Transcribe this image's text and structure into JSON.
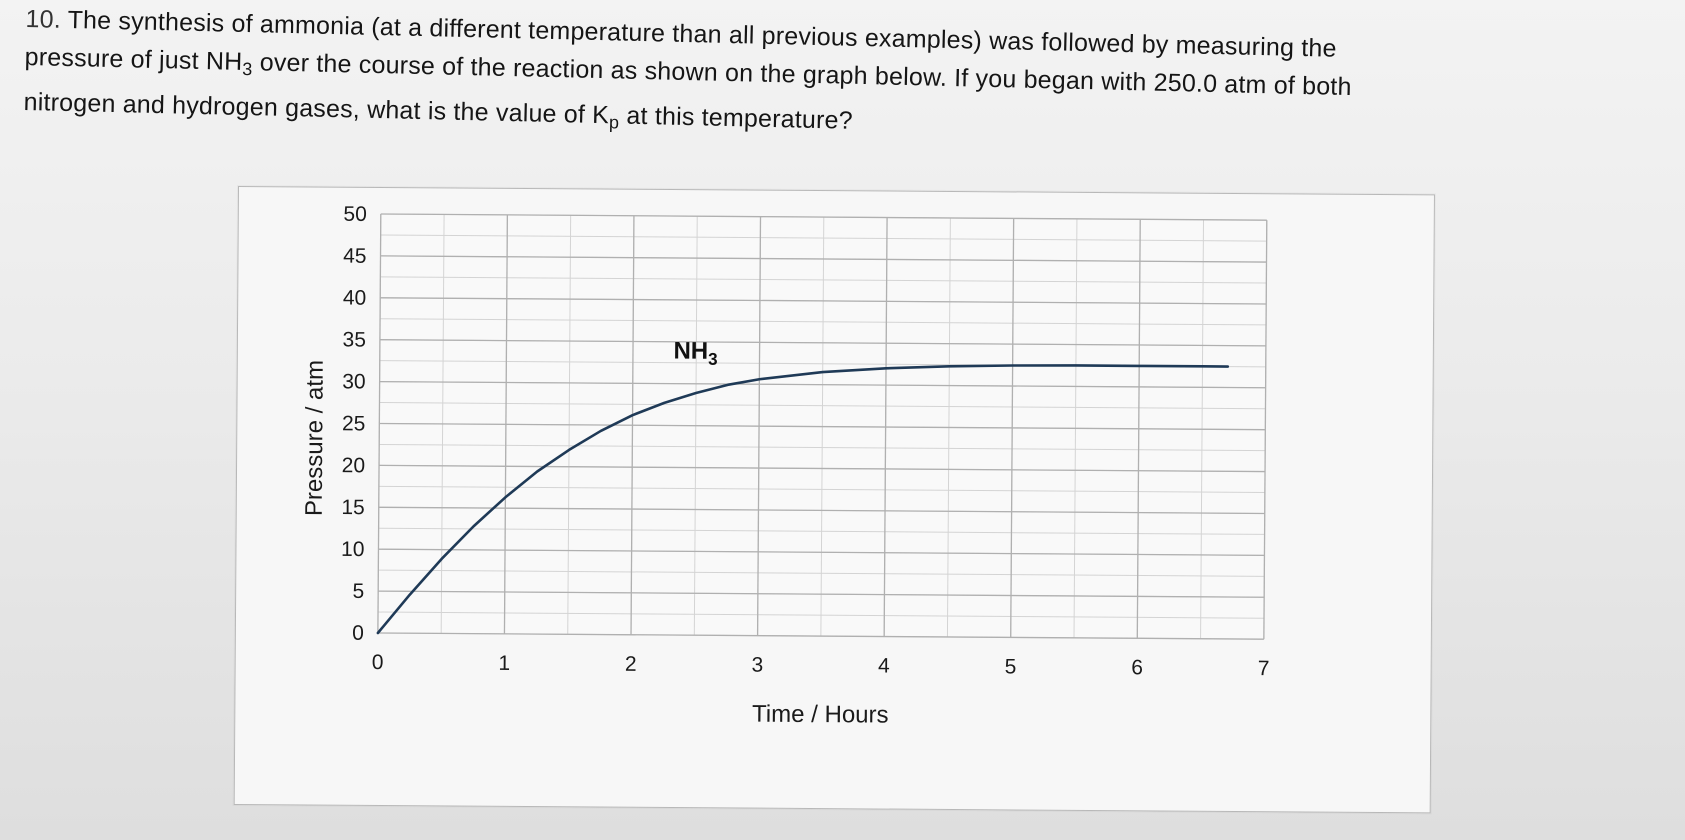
{
  "question": {
    "number": "10.",
    "line1": "The synthesis of ammonia (at a different temperature than all previous examples) was followed by measuring the",
    "line2_a": "pressure of just NH",
    "line2_sub": "3",
    "line2_b": " over the course of the reaction as shown on the graph below.  If you began with 250.0 atm of both",
    "line3_a": "nitrogen and hydrogen gases, what is the value of K",
    "line3_sub": "p",
    "line3_b": " at this temperature?"
  },
  "chart_data": {
    "type": "line",
    "title": "",
    "xlabel": "Time / Hours",
    "ylabel": "Pressure / atm",
    "xlim": [
      0,
      7
    ],
    "ylim": [
      0,
      50
    ],
    "x_ticks": [
      "0",
      "1",
      "2",
      "3",
      "4",
      "5",
      "6",
      "7"
    ],
    "y_ticks": [
      "0",
      "5",
      "10",
      "15",
      "20",
      "25",
      "30",
      "35",
      "40",
      "45",
      "50"
    ],
    "grid": true,
    "series": [
      {
        "name": "NH",
        "name_sub": "3",
        "color": "#1f3a57",
        "x": [
          0,
          0.25,
          0.5,
          0.75,
          1.0,
          1.25,
          1.5,
          1.75,
          2.0,
          2.25,
          2.5,
          2.75,
          3.0,
          3.5,
          4.0,
          4.5,
          5.0,
          5.5,
          6.0,
          6.5,
          6.7
        ],
        "y": [
          0,
          4.6,
          8.9,
          12.8,
          16.3,
          19.4,
          22.0,
          24.3,
          26.2,
          27.7,
          28.9,
          29.9,
          30.6,
          31.5,
          32.0,
          32.3,
          32.45,
          32.5,
          32.5,
          32.5,
          32.5
        ]
      }
    ]
  }
}
